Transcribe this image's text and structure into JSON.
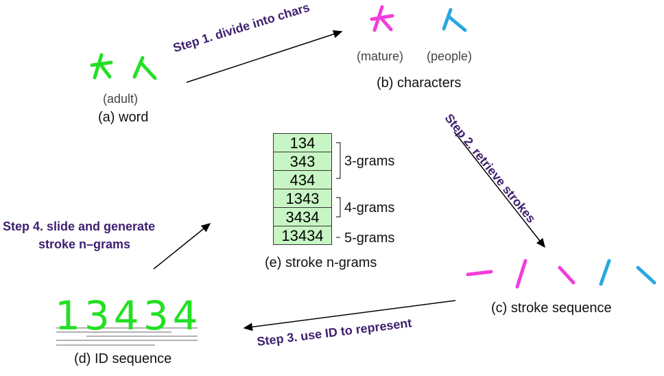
{
  "word": {
    "gloss": "(adult)",
    "caption": "(a) word"
  },
  "characters": {
    "gloss1": "(mature)",
    "gloss2": "(people)",
    "caption": "(b) characters"
  },
  "steps": {
    "s1": "Step 1. divide into chars",
    "s2": "Step 2. retrieve strokes",
    "s3": "Step 3. use ID to represent",
    "s4_line1": "Step 4. slide and generate",
    "s4_line2": "stroke n–grams"
  },
  "stroke_sequence": {
    "caption": "(c) stroke sequence"
  },
  "id_sequence": {
    "value": "13434",
    "caption": "(d) ID sequence"
  },
  "ngrams": {
    "items": [
      "134",
      "343",
      "434",
      "1343",
      "3434",
      "13434"
    ],
    "labels": {
      "three": "3-grams",
      "four": "4-grams",
      "five": "5-grams"
    },
    "caption": "(e) stroke n-grams"
  },
  "colors": {
    "green": "#22e022",
    "magenta": "#f23cdb",
    "blue": "#2aa8e0",
    "step": "#3d1f6e",
    "box_fill": "#c8f5c4"
  }
}
